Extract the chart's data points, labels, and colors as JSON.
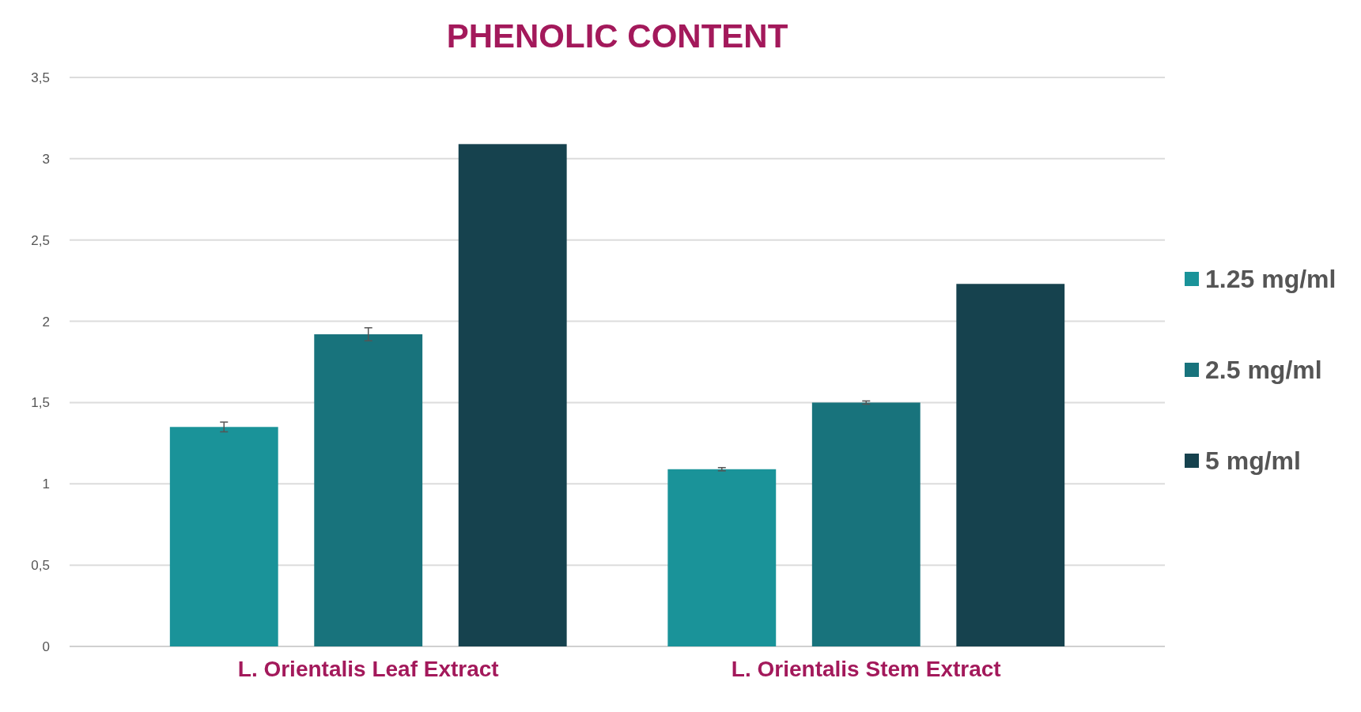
{
  "chart_data": {
    "type": "bar",
    "title": "PHENOLIC CONTENT",
    "categories": [
      "L. Orientalis Leaf Extract",
      "L. Orientalis Stem Extract"
    ],
    "series": [
      {
        "name": "1.25 mg/ml",
        "color": "#1a9399",
        "values": [
          1.35,
          1.09
        ],
        "errors": [
          0.03,
          0.01
        ]
      },
      {
        "name": "2.5 mg/ml",
        "color": "#18737c",
        "values": [
          1.92,
          1.5
        ],
        "errors": [
          0.04,
          0.01
        ]
      },
      {
        "name": "5 mg/ml",
        "color": "#16424e",
        "values": [
          3.09,
          2.23
        ]
      }
    ],
    "ylim": [
      0,
      3.5
    ],
    "yticks": [
      0,
      {
        "value": 0.5,
        "label": "0,5"
      },
      1,
      {
        "value": 1.5,
        "label": "1,5"
      },
      2,
      {
        "value": 2.5,
        "label": "2,5"
      },
      3,
      {
        "value": 3.5,
        "label": "3,5"
      }
    ],
    "grid": "y",
    "legend": "right"
  }
}
